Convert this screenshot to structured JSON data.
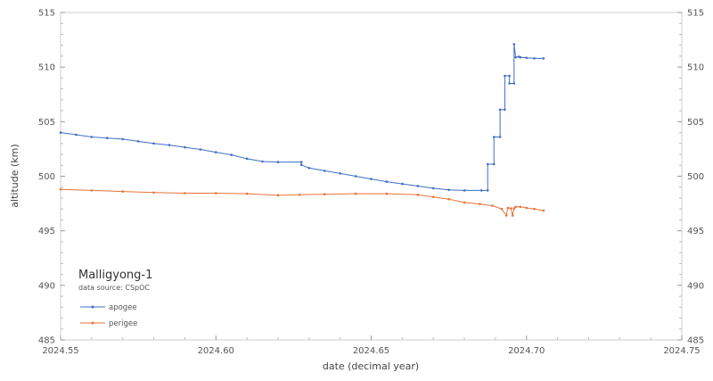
{
  "chart_data": {
    "type": "line",
    "title": "Malligyong-1",
    "subtitle": "data source:  CSpOC",
    "xlabel": "date (decimal year)",
    "ylabel": "altitude (km)",
    "xlim": [
      2024.55,
      2024.75
    ],
    "ylim": [
      485,
      515
    ],
    "xticks": [
      "2024.55",
      "2024.60",
      "2024.65",
      "2024.70",
      "2024.75"
    ],
    "yticks": [
      "485",
      "490",
      "495",
      "500",
      "505",
      "510",
      "515"
    ],
    "grid": false,
    "legend_position": "bottom-left",
    "series": [
      {
        "name": "apogee",
        "color": "#3f6fc4",
        "x": [
          2024.55,
          2024.555,
          2024.56,
          2024.565,
          2024.57,
          2024.575,
          2024.58,
          2024.585,
          2024.59,
          2024.595,
          2024.6,
          2024.605,
          2024.61,
          2024.615,
          2024.62,
          2024.6275,
          2024.6275,
          2024.63,
          2024.635,
          2024.64,
          2024.645,
          2024.65,
          2024.655,
          2024.66,
          2024.665,
          2024.67,
          2024.675,
          2024.68,
          2024.6855,
          2024.6875,
          2024.6875,
          2024.6895,
          2024.6895,
          2024.6915,
          2024.6915,
          2024.693,
          2024.693,
          2024.6945,
          2024.6945,
          2024.696,
          2024.696,
          2024.6965,
          2024.6975,
          2024.698,
          2024.7,
          2024.7025,
          2024.7055
        ],
        "y": [
          504.0,
          503.8,
          503.6,
          503.5,
          503.4,
          503.2,
          503.0,
          502.85,
          502.65,
          502.45,
          502.2,
          501.95,
          501.6,
          501.35,
          501.3,
          501.3,
          501.05,
          500.75,
          500.5,
          500.25,
          500.0,
          499.75,
          499.5,
          499.3,
          499.1,
          498.9,
          498.75,
          498.7,
          498.7,
          498.7,
          501.1,
          501.1,
          503.6,
          503.6,
          506.1,
          506.1,
          509.2,
          509.2,
          508.5,
          508.5,
          512.1,
          510.9,
          510.95,
          510.9,
          510.85,
          510.8,
          510.8
        ]
      },
      {
        "name": "perigee",
        "color": "#e8733a",
        "x": [
          2024.55,
          2024.56,
          2024.57,
          2024.58,
          2024.59,
          2024.6,
          2024.61,
          2024.62,
          2024.627,
          2024.635,
          2024.645,
          2024.655,
          2024.665,
          2024.67,
          2024.675,
          2024.68,
          2024.685,
          2024.689,
          2024.692,
          2024.6935,
          2024.694,
          2024.695,
          2024.6955,
          2024.696,
          2024.6965,
          2024.698,
          2024.7,
          2024.7025,
          2024.7055
        ],
        "y": [
          498.8,
          498.7,
          498.6,
          498.5,
          498.45,
          498.45,
          498.4,
          498.25,
          498.3,
          498.35,
          498.4,
          498.4,
          498.3,
          498.1,
          497.9,
          497.6,
          497.45,
          497.3,
          497.0,
          496.4,
          497.1,
          497.05,
          496.4,
          497.05,
          497.2,
          497.2,
          497.1,
          497.0,
          496.85
        ]
      }
    ]
  }
}
